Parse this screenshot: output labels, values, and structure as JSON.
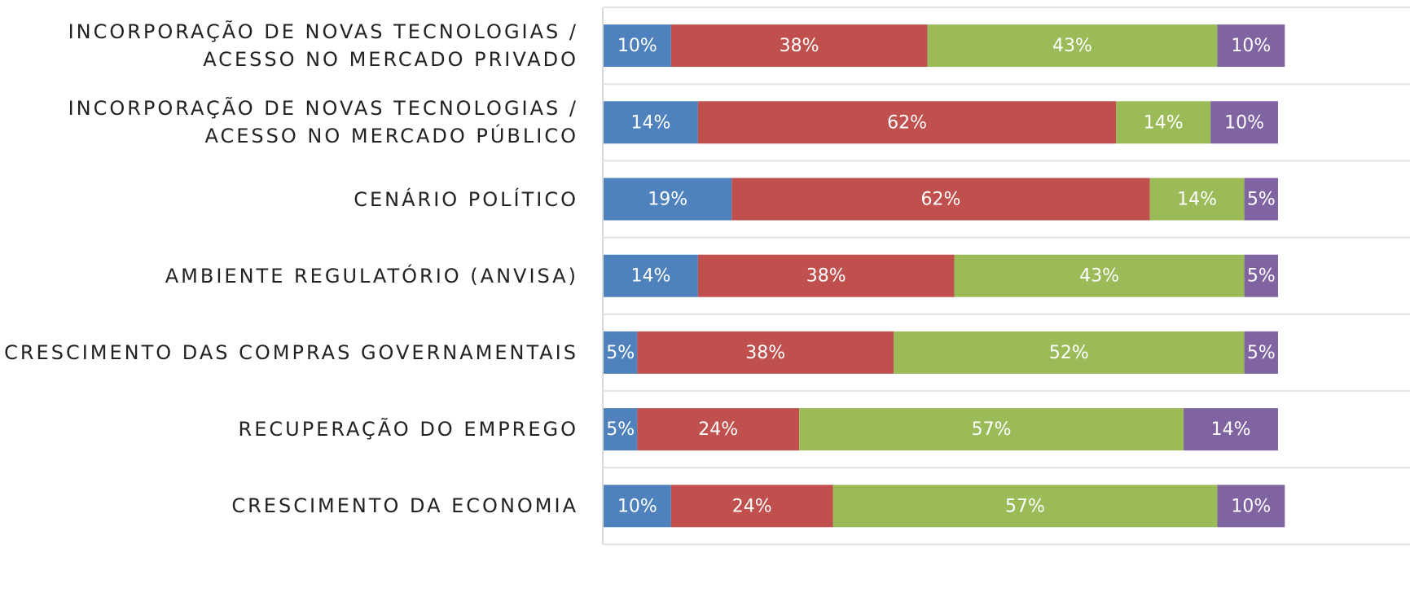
{
  "chart_data": {
    "type": "stacked-bar-horizontal",
    "categories": [
      "INCORPORAÇÃO DE NOVAS TECNOLOGIAS /\nACESSO NO MERCADO PRIVADO",
      "INCORPORAÇÃO DE NOVAS TECNOLOGIAS /\nACESSO NO MERCADO PÚBLICO",
      "CENÁRIO POLÍTICO",
      "AMBIENTE REGULATÓRIO (ANVISA)",
      "CRESCIMENTO DAS COMPRAS GOVERNAMENTAIS",
      "RECUPERAÇÃO DO EMPREGO",
      "CRESCIMENTO DA ECONOMIA"
    ],
    "series": [
      {
        "color": "#4f81bd",
        "values": [
          10,
          14,
          19,
          14,
          5,
          5,
          10
        ],
        "value_labels": [
          "10%",
          "14%",
          "19%",
          "14%",
          "5%",
          "5%",
          "10%"
        ]
      },
      {
        "color": "#c0504d",
        "values": [
          38,
          62,
          62,
          38,
          38,
          24,
          24
        ],
        "value_labels": [
          "38%",
          "62%",
          "62%",
          "38%",
          "38%",
          "24%",
          "24%"
        ]
      },
      {
        "color": "#9bbb59",
        "values": [
          43,
          14,
          14,
          43,
          52,
          57,
          57
        ],
        "value_labels": [
          "43%",
          "14%",
          "14%",
          "43%",
          "52%",
          "57%",
          "57%"
        ]
      },
      {
        "color": "#8064a2",
        "values": [
          10,
          10,
          5,
          5,
          5,
          14,
          10
        ],
        "value_labels": [
          "10%",
          "10%",
          "5%",
          "5%",
          "5%",
          "14%",
          "10%"
        ]
      }
    ],
    "xlim": [
      0,
      100
    ]
  }
}
